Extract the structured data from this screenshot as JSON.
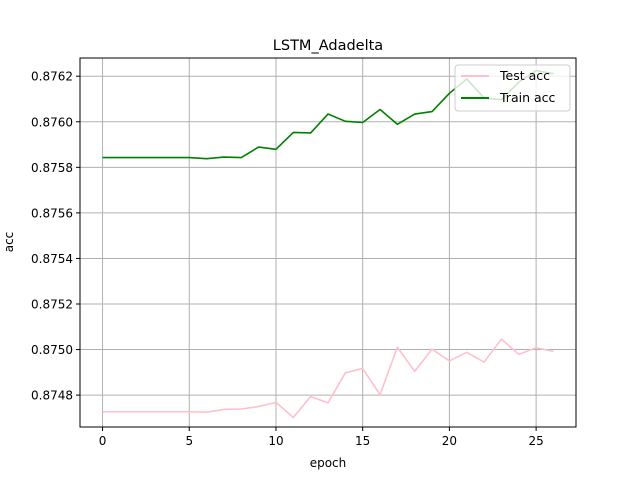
{
  "chart_data": {
    "type": "line",
    "title": "LSTM_Adadelta",
    "xlabel": "epoch",
    "ylabel": "acc",
    "xlim": [
      -1.3,
      27.3
    ],
    "ylim": [
      0.87466,
      0.87628
    ],
    "xticks": [
      0,
      5,
      10,
      15,
      20,
      25
    ],
    "yticks": [
      0.8748,
      0.875,
      0.8752,
      0.8754,
      0.8756,
      0.8758,
      0.876,
      0.8762
    ],
    "ytick_labels": [
      "0.8748",
      "0.8750",
      "0.8752",
      "0.8754",
      "0.8756",
      "0.8758",
      "0.8760",
      "0.8762"
    ],
    "grid": true,
    "legend_position": "top-right",
    "x": [
      0,
      1,
      2,
      3,
      4,
      5,
      6,
      7,
      8,
      9,
      10,
      11,
      12,
      13,
      14,
      15,
      16,
      17,
      18,
      19,
      20,
      21,
      22,
      23,
      24,
      25,
      26
    ],
    "series": [
      {
        "name": "Test acc",
        "color": "#ffc0cb",
        "values": [
          0.874727,
          0.874727,
          0.874727,
          0.874727,
          0.874727,
          0.874727,
          0.874725,
          0.874737,
          0.874739,
          0.87475,
          0.874768,
          0.874702,
          0.874794,
          0.874766,
          0.874898,
          0.874917,
          0.874802,
          0.87501,
          0.874904,
          0.875002,
          0.87495,
          0.874988,
          0.874945,
          0.875046,
          0.874979,
          0.875008,
          0.874992
        ]
      },
      {
        "name": "Train acc",
        "color": "#008000",
        "values": [
          0.875843,
          0.875843,
          0.875843,
          0.875843,
          0.875843,
          0.875843,
          0.875838,
          0.875845,
          0.875843,
          0.875889,
          0.875879,
          0.875953,
          0.875951,
          0.876034,
          0.876002,
          0.875997,
          0.876054,
          0.875989,
          0.876034,
          0.876045,
          0.876125,
          0.876188,
          0.876104,
          0.876097,
          0.876174,
          0.876225,
          0.876211
        ]
      }
    ]
  }
}
